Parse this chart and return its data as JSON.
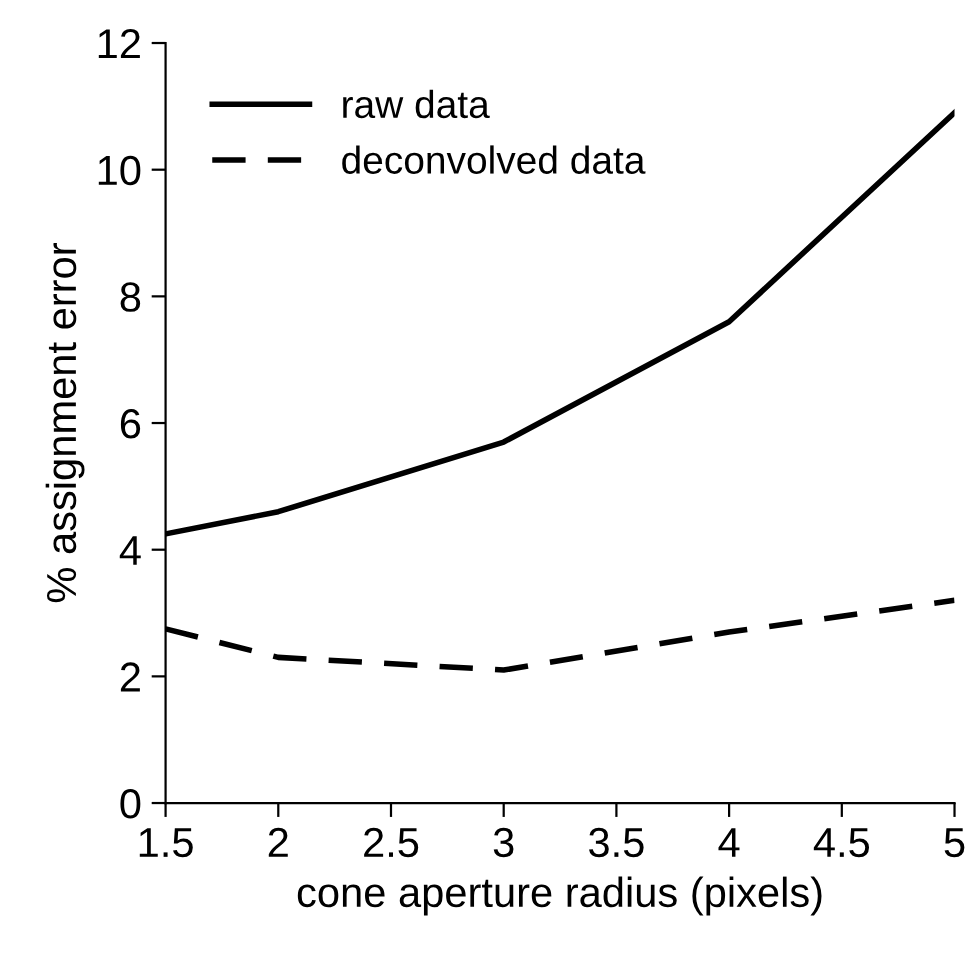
{
  "chart_data": {
    "type": "line",
    "xlabel": "cone aperture radius (pixels)",
    "ylabel": "% assignment error",
    "x": [
      1.5,
      2,
      3,
      4,
      5
    ],
    "series": [
      {
        "name": "raw data",
        "color": "#000000",
        "line_style": "solid",
        "values": [
          4.25,
          4.6,
          5.7,
          7.6,
          10.9
        ]
      },
      {
        "name": "deconvolved data",
        "color": "#000000",
        "line_style": "dashed",
        "values": [
          2.75,
          2.3,
          2.1,
          2.7,
          3.2
        ]
      }
    ],
    "xlim": [
      1.5,
      5
    ],
    "xticks": [
      1.5,
      2,
      2.5,
      3,
      3.5,
      4,
      4.5,
      5
    ],
    "ylim": [
      0,
      12
    ],
    "yticks": [
      0,
      2,
      4,
      6,
      8,
      10,
      12
    ],
    "grid": false,
    "legend": "top left",
    "marker": "none"
  }
}
